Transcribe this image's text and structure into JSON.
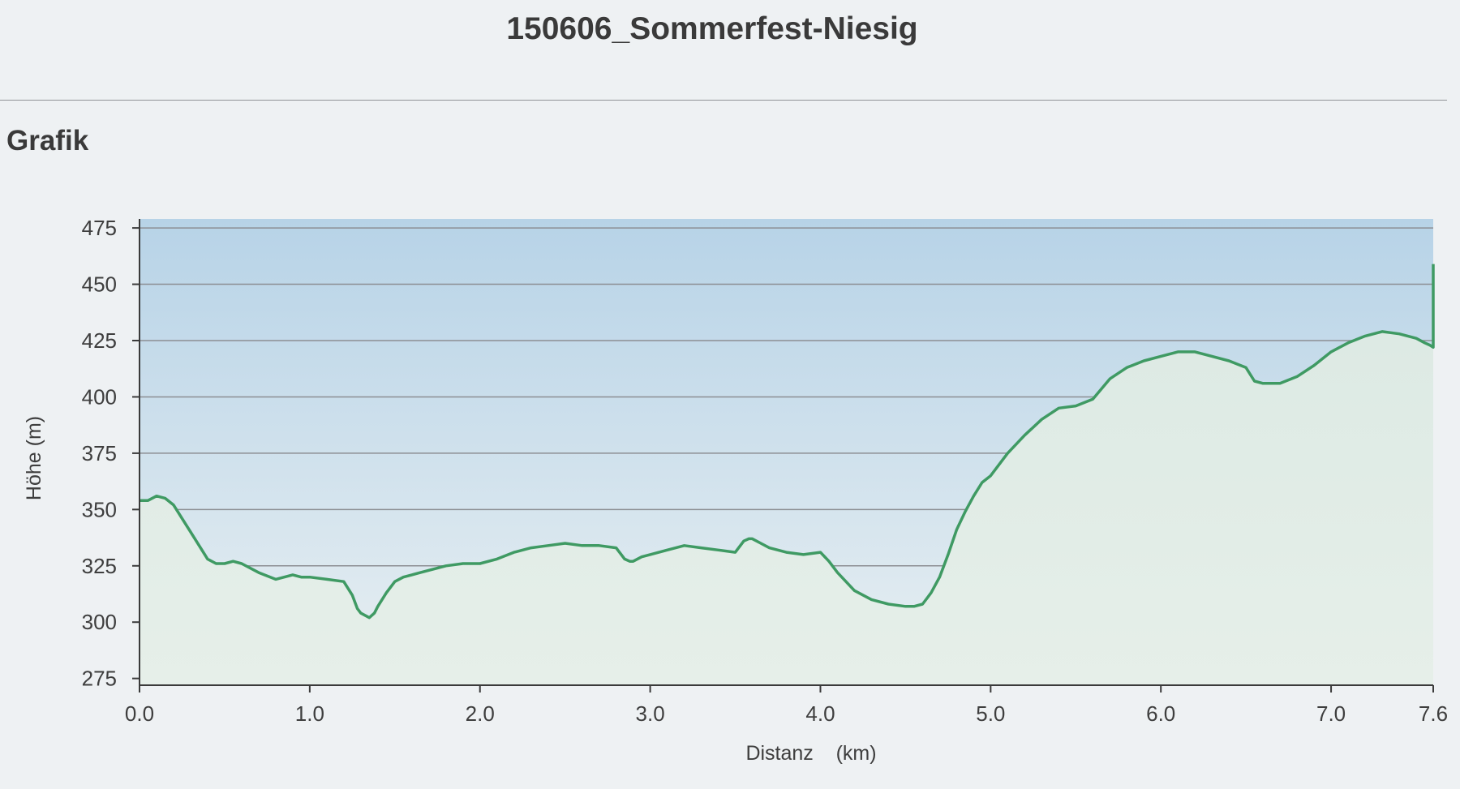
{
  "page": {
    "title": "150606_Sommerfest-Niesig",
    "section": "Grafik"
  },
  "colors": {
    "line": "#3f9a63",
    "grid": "#8c8e93",
    "sky_top": "#b7d3e7",
    "sky_bottom": "#e8eff2",
    "fill_top": "#dbe9e3",
    "fill_bottom": "#e6efe9"
  },
  "chart_data": {
    "type": "area",
    "title": "",
    "xlabel": "Distanz    (km)",
    "ylabel": "Höhe (m)",
    "xlim": [
      0.0,
      7.6
    ],
    "ylim": [
      272,
      479
    ],
    "x_ticks": [
      {
        "value": 0.0,
        "label": "0.0"
      },
      {
        "value": 1.0,
        "label": "1.0"
      },
      {
        "value": 2.0,
        "label": "2.0"
      },
      {
        "value": 3.0,
        "label": "3.0"
      },
      {
        "value": 4.0,
        "label": "4.0"
      },
      {
        "value": 5.0,
        "label": "5.0"
      },
      {
        "value": 6.0,
        "label": "6.0"
      },
      {
        "value": 7.0,
        "label": "7.0"
      },
      {
        "value": 7.6,
        "label": "7.6"
      }
    ],
    "y_ticks": [
      {
        "value": 275,
        "label": "275"
      },
      {
        "value": 300,
        "label": "300"
      },
      {
        "value": 325,
        "label": "325"
      },
      {
        "value": 350,
        "label": "350"
      },
      {
        "value": 375,
        "label": "375"
      },
      {
        "value": 400,
        "label": "400"
      },
      {
        "value": 425,
        "label": "425"
      },
      {
        "value": 450,
        "label": "450"
      },
      {
        "value": 475,
        "label": "475"
      }
    ],
    "grid": true,
    "series": [
      {
        "x": [
          0.0,
          0.05,
          0.1,
          0.15,
          0.2,
          0.25,
          0.3,
          0.35,
          0.4,
          0.45,
          0.5,
          0.55,
          0.6,
          0.7,
          0.8,
          0.85,
          0.9,
          0.95,
          1.0,
          1.1,
          1.2,
          1.25,
          1.28,
          1.3,
          1.35,
          1.38,
          1.4,
          1.45,
          1.5,
          1.55,
          1.6,
          1.65,
          1.7,
          1.8,
          1.9,
          2.0,
          2.1,
          2.2,
          2.3,
          2.4,
          2.5,
          2.6,
          2.7,
          2.8,
          2.85,
          2.88,
          2.9,
          2.95,
          3.0,
          3.1,
          3.2,
          3.3,
          3.4,
          3.5,
          3.55,
          3.58,
          3.6,
          3.65,
          3.7,
          3.8,
          3.9,
          4.0,
          4.05,
          4.1,
          4.2,
          4.3,
          4.4,
          4.5,
          4.55,
          4.6,
          4.65,
          4.7,
          4.75,
          4.8,
          4.85,
          4.9,
          4.95,
          5.0,
          5.05,
          5.1,
          5.2,
          5.3,
          5.4,
          5.5,
          5.6,
          5.7,
          5.8,
          5.9,
          6.0,
          6.1,
          6.2,
          6.3,
          6.4,
          6.5,
          6.55,
          6.6,
          6.65,
          6.7,
          6.8,
          6.9,
          7.0,
          7.1,
          7.2,
          7.3,
          7.4,
          7.5,
          7.55,
          7.58,
          7.6,
          7.6
        ],
        "y": [
          354,
          354,
          356,
          355,
          352,
          346,
          340,
          334,
          328,
          326,
          326,
          327,
          326,
          322,
          319,
          320,
          321,
          320,
          320,
          319,
          318,
          312,
          306,
          304,
          302,
          304,
          307,
          313,
          318,
          320,
          321,
          322,
          323,
          325,
          326,
          326,
          328,
          331,
          333,
          334,
          335,
          334,
          334,
          333,
          328,
          327,
          327,
          329,
          330,
          332,
          334,
          333,
          332,
          331,
          336,
          337,
          337,
          335,
          333,
          331,
          330,
          331,
          327,
          322,
          314,
          310,
          308,
          307,
          307,
          308,
          313,
          320,
          330,
          341,
          349,
          356,
          362,
          365,
          370,
          375,
          383,
          390,
          395,
          396,
          399,
          408,
          413,
          416,
          418,
          420,
          420,
          418,
          416,
          413,
          407,
          406,
          406,
          406,
          409,
          414,
          420,
          424,
          427,
          429,
          428,
          426,
          424,
          423,
          422,
          459
        ]
      }
    ]
  }
}
